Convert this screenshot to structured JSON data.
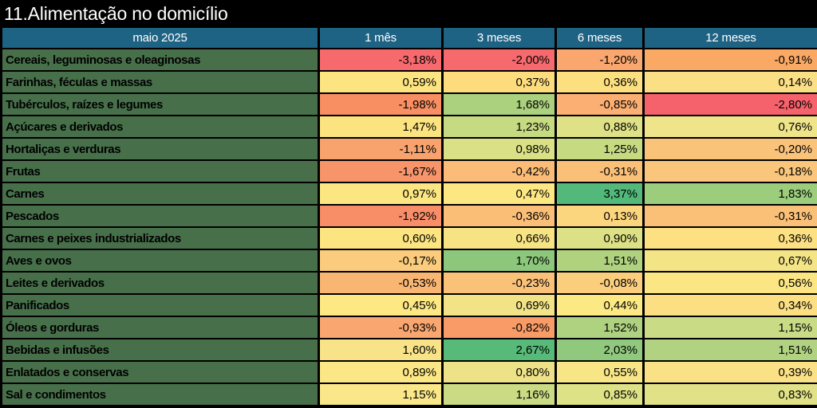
{
  "title": "11.Alimentação no domicílio",
  "colors": {
    "background": "#000000",
    "title_text": "#FFFFFF",
    "header_bg": "#1F6384",
    "header_text": "#FFFFFF",
    "label_bg": "#47704A",
    "label_text": "#000000",
    "grid": "#000000",
    "scale_low": "#F8696B",
    "scale_mid": "#FFEB84",
    "scale_high": "#63BE7B"
  },
  "table": {
    "period_label": "maio 2025",
    "columns": [
      "1 mês",
      "3 meses",
      "6 meses",
      "12 meses"
    ],
    "rows": [
      {
        "label": "Cereais, leguminosas e oleaginosas",
        "values": [
          "-3,18%",
          "-2,00%",
          "-1,20%",
          "-0,91%"
        ],
        "colors": [
          "#F6696D",
          "#F66A6D",
          "#F9A76F",
          "#F9A963"
        ]
      },
      {
        "label": "Farinhas, féculas e massas",
        "values": [
          "0,59%",
          "0,37%",
          "0,36%",
          "0,14%"
        ],
        "colors": [
          "#FCE481",
          "#FCDC7D",
          "#FCE080",
          "#FBDF85"
        ]
      },
      {
        "label": "Tubérculos, raízes e legumes",
        "values": [
          "-1,98%",
          "1,68%",
          "-0,85%",
          "-2,80%"
        ],
        "colors": [
          "#F78F63",
          "#ABD07E",
          "#FBAF72",
          "#F6626B"
        ]
      },
      {
        "label": "Açúcares e derivados",
        "values": [
          "1,47%",
          "1,23%",
          "0,88%",
          "0,76%"
        ],
        "colors": [
          "#FBE380",
          "#C6DA82",
          "#DFE186",
          "#EFE489"
        ]
      },
      {
        "label": "Hortaliças e verduras",
        "values": [
          "-1,11%",
          "0,98%",
          "1,25%",
          "-0,20%"
        ],
        "colors": [
          "#F8A26E",
          "#D9E085",
          "#C5DA81",
          "#FAC37A"
        ]
      },
      {
        "label": "Frutas",
        "values": [
          "-1,67%",
          "-0,42%",
          "-0,31%",
          "-0,18%"
        ],
        "colors": [
          "#F7946A",
          "#FABC76",
          "#FAC078",
          "#FAC67B"
        ]
      },
      {
        "label": "Carnes",
        "values": [
          "0,97%",
          "0,47%",
          "3,37%",
          "1,83%"
        ],
        "colors": [
          "#FCE681",
          "#FDE783",
          "#52B97A",
          "#9CCD7C"
        ]
      },
      {
        "label": "Pescados",
        "values": [
          "-1,92%",
          "-0,36%",
          "0,13%",
          "-0,31%"
        ],
        "colors": [
          "#F78E68",
          "#FABE77",
          "#FCD67F",
          "#FAC078"
        ]
      },
      {
        "label": "Carnes e peixes industrializados",
        "values": [
          "0,60%",
          "0,66%",
          "0,90%",
          "0,36%"
        ],
        "colors": [
          "#FCE481",
          "#F6E384",
          "#DDE185",
          "#FCE082"
        ]
      },
      {
        "label": "Aves e ovos",
        "values": [
          "-0,17%",
          "1,70%",
          "1,51%",
          "0,67%"
        ],
        "colors": [
          "#FBCC7D",
          "#8DC77C",
          "#B0D27F",
          "#F3E486"
        ]
      },
      {
        "label": "Leites e derivados",
        "values": [
          "-0,53%",
          "-0,23%",
          "-0,08%",
          "0,56%"
        ],
        "colors": [
          "#F9B673",
          "#FAC279",
          "#FBCE7E",
          "#FCE684"
        ]
      },
      {
        "label": "Panificados",
        "values": [
          "0,45%",
          "0,69%",
          "0,44%",
          "0,34%"
        ],
        "colors": [
          "#FDE883",
          "#F2E386",
          "#FDE984",
          "#FBDF82"
        ]
      },
      {
        "label": "Óleos e gorduras",
        "values": [
          "-0,93%",
          "-0,82%",
          "1,52%",
          "1,15%"
        ],
        "colors": [
          "#F9A671",
          "#F89B66",
          "#AFD281",
          "#C9DB84"
        ]
      },
      {
        "label": "Bebidas e infusões",
        "values": [
          "1,60%",
          "2,67%",
          "2,03%",
          "1,51%"
        ],
        "colors": [
          "#F8E388",
          "#58BA78",
          "#90C97E",
          "#B0D281"
        ]
      },
      {
        "label": "Enlatados e conservas",
        "values": [
          "0,89%",
          "0,80%",
          "0,55%",
          "0,39%"
        ],
        "colors": [
          "#FBE786",
          "#EDE287",
          "#F7E586",
          "#FBE185"
        ]
      },
      {
        "label": "Sal e condimentos",
        "values": [
          "1,15%",
          "1,16%",
          "0,85%",
          "0,83%"
        ],
        "colors": [
          "#FAE789",
          "#CADB84",
          "#DEE286",
          "#E1E287"
        ]
      }
    ]
  },
  "chart_data": {
    "type": "heatmap",
    "title": "11.Alimentação no domicílio",
    "period": "maio 2025",
    "columns": [
      "1 mês",
      "3 meses",
      "6 meses",
      "12 meses"
    ],
    "categories": [
      "Cereais, leguminosas e oleaginosas",
      "Farinhas, féculas e massas",
      "Tubérculos, raízes e legumes",
      "Açúcares e derivados",
      "Hortaliças e verduras",
      "Frutas",
      "Carnes",
      "Pescados",
      "Carnes e peixes industrializados",
      "Aves e ovos",
      "Leites e derivados",
      "Panificados",
      "Óleos e gorduras",
      "Bebidas e infusões",
      "Enlatados e conservas",
      "Sal e condimentos"
    ],
    "values_pct": [
      [
        -3.18,
        -2.0,
        -1.2,
        -0.91
      ],
      [
        0.59,
        0.37,
        0.36,
        0.14
      ],
      [
        -1.98,
        1.68,
        -0.85,
        -2.8
      ],
      [
        1.47,
        1.23,
        0.88,
        0.76
      ],
      [
        -1.11,
        0.98,
        1.25,
        -0.2
      ],
      [
        -1.67,
        -0.42,
        -0.31,
        -0.18
      ],
      [
        0.97,
        0.47,
        3.37,
        1.83
      ],
      [
        -1.92,
        -0.36,
        0.13,
        -0.31
      ],
      [
        0.6,
        0.66,
        0.9,
        0.36
      ],
      [
        -0.17,
        1.7,
        1.51,
        0.67
      ],
      [
        -0.53,
        -0.23,
        -0.08,
        0.56
      ],
      [
        0.45,
        0.69,
        0.44,
        0.34
      ],
      [
        -0.93,
        -0.82,
        1.52,
        1.15
      ],
      [
        1.6,
        2.67,
        2.03,
        1.51
      ],
      [
        0.89,
        0.8,
        0.55,
        0.39
      ],
      [
        1.15,
        1.16,
        0.85,
        0.83
      ]
    ],
    "value_range": [
      -3.18,
      3.37
    ],
    "colormap": "red-yellow-green (low=red, mid=yellow, high=green)",
    "number_format": "0,00% (pt-BR decimal comma)"
  }
}
